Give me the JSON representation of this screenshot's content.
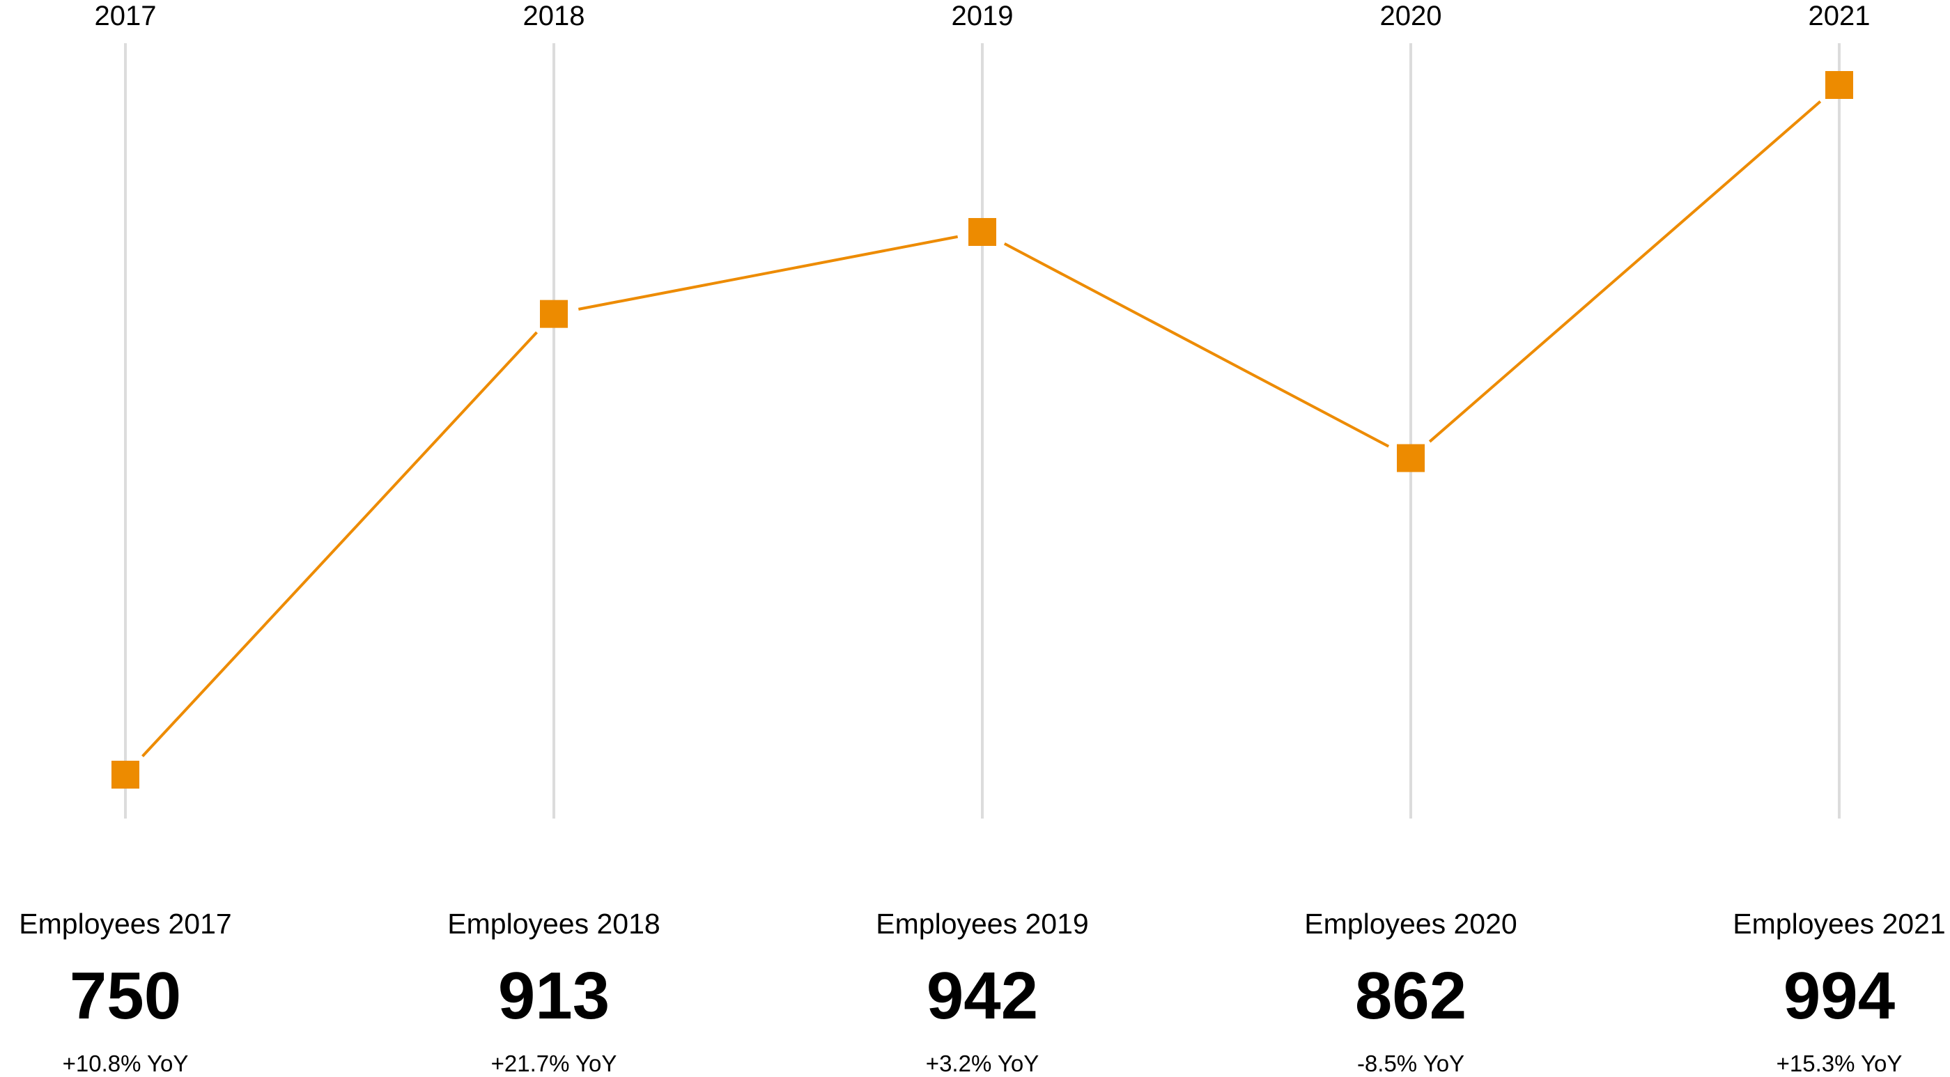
{
  "chart_data": {
    "type": "line",
    "categories": [
      "2017",
      "2018",
      "2019",
      "2020",
      "2021"
    ],
    "values": [
      750,
      913,
      942,
      862,
      994
    ],
    "grid": true,
    "marker": "square",
    "colors": {
      "line": "#ED8B00",
      "marker": "#ED8B00",
      "gridline": "#DCDCDC"
    },
    "stats": [
      {
        "title": "Employees 2017",
        "value": "750",
        "yoy": "+10.8% YoY"
      },
      {
        "title": "Employees 2018",
        "value": "913",
        "yoy": "+21.7% YoY"
      },
      {
        "title": "Employees 2019",
        "value": "942",
        "yoy": "+3.2% YoY"
      },
      {
        "title": "Employees 2020",
        "value": "862",
        "yoy": "-8.5% YoY"
      },
      {
        "title": "Employees 2021",
        "value": "994",
        "yoy": "+15.3% YoY"
      }
    ]
  }
}
